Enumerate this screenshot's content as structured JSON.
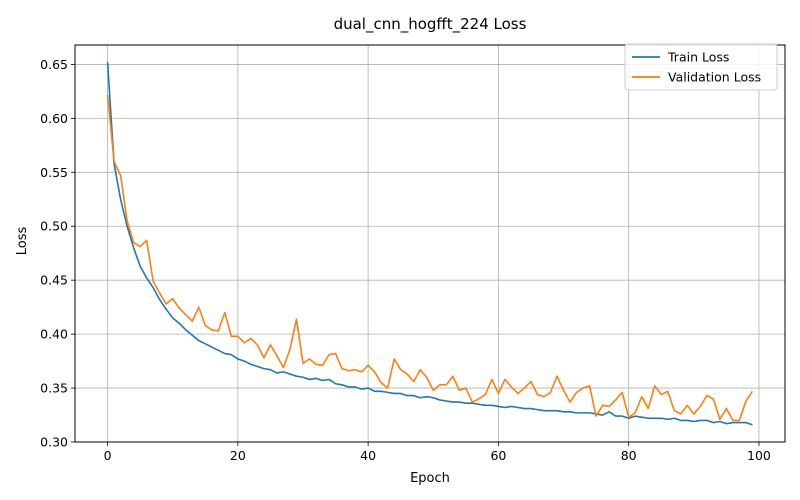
{
  "chart_data": {
    "type": "line",
    "title": "dual_cnn_hogfft_224 Loss",
    "xlabel": "Epoch",
    "ylabel": "Loss",
    "xlim": [
      -5,
      104
    ],
    "ylim": [
      0.3,
      0.668
    ],
    "x_ticks": [
      0,
      20,
      40,
      60,
      80,
      100
    ],
    "y_ticks": [
      0.3,
      0.35,
      0.4,
      0.45,
      0.5,
      0.55,
      0.6,
      0.65
    ],
    "y_tick_labels": [
      "0.30",
      "0.35",
      "0.40",
      "0.45",
      "0.50",
      "0.55",
      "0.60",
      "0.65"
    ],
    "grid": true,
    "legend_position": "top-right",
    "series": [
      {
        "name": "Train Loss",
        "color": "#1f77b4",
        "values": [
          0.652,
          0.558,
          0.525,
          0.5,
          0.48,
          0.463,
          0.452,
          0.443,
          0.432,
          0.423,
          0.415,
          0.41,
          0.404,
          0.399,
          0.394,
          0.391,
          0.388,
          0.385,
          0.382,
          0.381,
          0.377,
          0.375,
          0.372,
          0.37,
          0.368,
          0.367,
          0.364,
          0.365,
          0.363,
          0.361,
          0.36,
          0.358,
          0.359,
          0.357,
          0.358,
          0.354,
          0.353,
          0.351,
          0.351,
          0.349,
          0.35,
          0.347,
          0.347,
          0.346,
          0.345,
          0.345,
          0.343,
          0.343,
          0.341,
          0.342,
          0.341,
          0.339,
          0.338,
          0.337,
          0.337,
          0.336,
          0.336,
          0.335,
          0.334,
          0.334,
          0.333,
          0.332,
          0.333,
          0.332,
          0.331,
          0.331,
          0.33,
          0.329,
          0.329,
          0.329,
          0.328,
          0.328,
          0.327,
          0.327,
          0.327,
          0.326,
          0.325,
          0.328,
          0.324,
          0.324,
          0.322,
          0.324,
          0.323,
          0.322,
          0.322,
          0.322,
          0.321,
          0.322,
          0.32,
          0.32,
          0.319,
          0.32,
          0.32,
          0.318,
          0.319,
          0.317,
          0.318,
          0.318,
          0.318,
          0.316
        ]
      },
      {
        "name": "Validation Loss",
        "color": "#ff7f0e",
        "values": [
          0.622,
          0.56,
          0.547,
          0.505,
          0.485,
          0.481,
          0.487,
          0.449,
          0.438,
          0.428,
          0.433,
          0.424,
          0.418,
          0.412,
          0.425,
          0.408,
          0.404,
          0.403,
          0.42,
          0.398,
          0.398,
          0.392,
          0.396,
          0.39,
          0.378,
          0.39,
          0.38,
          0.369,
          0.386,
          0.414,
          0.373,
          0.377,
          0.372,
          0.371,
          0.381,
          0.382,
          0.368,
          0.366,
          0.367,
          0.365,
          0.371,
          0.365,
          0.355,
          0.35,
          0.377,
          0.367,
          0.363,
          0.356,
          0.367,
          0.36,
          0.348,
          0.353,
          0.353,
          0.361,
          0.348,
          0.35,
          0.337,
          0.34,
          0.344,
          0.358,
          0.345,
          0.358,
          0.351,
          0.345,
          0.35,
          0.356,
          0.344,
          0.342,
          0.346,
          0.361,
          0.348,
          0.337,
          0.346,
          0.35,
          0.352,
          0.324,
          0.334,
          0.333,
          0.339,
          0.346,
          0.323,
          0.327,
          0.342,
          0.331,
          0.352,
          0.344,
          0.347,
          0.329,
          0.326,
          0.334,
          0.326,
          0.333,
          0.343,
          0.34,
          0.321,
          0.331,
          0.32,
          0.32,
          0.338,
          0.347
        ]
      }
    ]
  }
}
